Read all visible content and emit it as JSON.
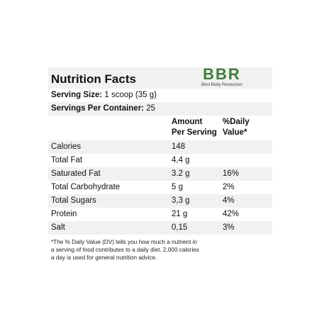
{
  "title": "Nutrition Facts",
  "logo": {
    "mark": "BBR",
    "subtitle": "Best Body Resources",
    "color": "#3f7d3a"
  },
  "serving_size": {
    "label": "Serving Size:",
    "value": "1 scoop (35 g)"
  },
  "servings_per_container": {
    "label": "Servings Per Container:",
    "value": "25"
  },
  "columns": {
    "amount_line1": "Amount",
    "amount_line2": "Per Serving",
    "dv_line1": "%Daily",
    "dv_line2": "Value*"
  },
  "nutrients": [
    {
      "name": "Calories",
      "amount": "148",
      "dv": ""
    },
    {
      "name": "Total Fat",
      "amount": "4,4 g",
      "dv": ""
    },
    {
      "name": "Saturated Fat",
      "amount": "3.2 g",
      "dv": "16%"
    },
    {
      "name": "Total Carbohydrate",
      "amount": "5 g",
      "dv": "2%"
    },
    {
      "name": "Total Sugars",
      "amount": "3,3 g",
      "dv": "4%"
    },
    {
      "name": "Protein",
      "amount": "21 g",
      "dv": "42%"
    },
    {
      "name": "Salt",
      "amount": "0,15",
      "dv": "3%"
    }
  ],
  "footnote": {
    "line1": "*The % Daily Value (DV) tells you how much a nutrient in",
    "line2": "a serving of food contributes to a daily diet. 2,000 calories",
    "line3": "a day is used for general nutrition advice."
  },
  "colors": {
    "row_shade": "#f1f1f1",
    "text": "#111111"
  }
}
